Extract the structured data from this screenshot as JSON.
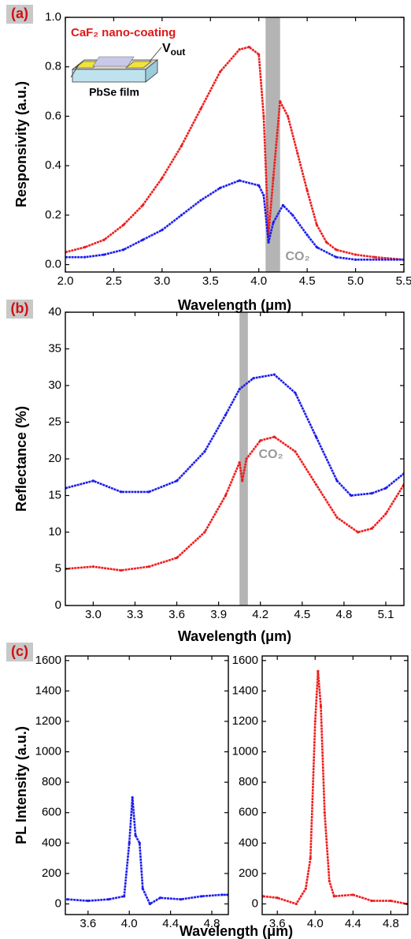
{
  "chart_data": [
    {
      "type": "line",
      "panel_label": "(a)",
      "x_label": "Wavelength (μm)",
      "y_label": "Responsivity (a.u.)",
      "xlim": [
        2.0,
        5.5
      ],
      "ylim": [
        -0.03,
        1.0
      ],
      "xticks": [
        {
          "value": 2.0,
          "label": "2.0"
        },
        2.5,
        {
          "value": 3.0,
          "label": "3.0"
        },
        3.5,
        {
          "value": 4.0,
          "label": "4.0"
        },
        4.5,
        {
          "value": 5.0,
          "label": "5.0"
        },
        5.5
      ],
      "yticks": [
        {
          "value": 0,
          "label": "0.0"
        },
        0.2,
        0.4,
        0.6,
        0.8,
        {
          "value": 1,
          "label": "1.0"
        }
      ],
      "band": [
        4.07,
        4.22
      ],
      "band_color": "#b4b4b4",
      "band_label": "CO₂",
      "inset": {
        "coating": "CaF₂ nano-coating",
        "v": "V",
        "v_sub": "out",
        "film": "PbSe film"
      },
      "series": [
        {
          "color": "#ee1c1c",
          "x": [
            2.0,
            2.2,
            2.4,
            2.6,
            2.8,
            3.0,
            3.2,
            3.4,
            3.6,
            3.8,
            3.9,
            4.0,
            4.05,
            4.1,
            4.15,
            4.22,
            4.3,
            4.4,
            4.5,
            4.6,
            4.7,
            4.8,
            5.0,
            5.2,
            5.5
          ],
          "values": [
            0.05,
            0.07,
            0.1,
            0.16,
            0.24,
            0.35,
            0.48,
            0.63,
            0.78,
            0.87,
            0.88,
            0.85,
            0.6,
            0.12,
            0.35,
            0.66,
            0.6,
            0.45,
            0.3,
            0.16,
            0.09,
            0.06,
            0.04,
            0.03,
            0.02
          ]
        },
        {
          "color": "#1c1cee",
          "x": [
            2.0,
            2.2,
            2.4,
            2.6,
            2.8,
            3.0,
            3.2,
            3.4,
            3.6,
            3.8,
            4.0,
            4.05,
            4.1,
            4.15,
            4.25,
            4.35,
            4.5,
            4.6,
            4.8,
            5.0,
            5.5
          ],
          "values": [
            0.03,
            0.03,
            0.04,
            0.06,
            0.1,
            0.14,
            0.2,
            0.26,
            0.31,
            0.34,
            0.32,
            0.28,
            0.09,
            0.17,
            0.24,
            0.2,
            0.12,
            0.07,
            0.03,
            0.02,
            0.02
          ]
        }
      ]
    },
    {
      "type": "line",
      "panel_label": "(b)",
      "x_label": "Wavelength (μm)",
      "y_label": "Reflectance (%)",
      "xlim": [
        2.8,
        5.23
      ],
      "ylim": [
        0,
        40
      ],
      "xticks": [
        {
          "value": 3.0,
          "label": "3.0"
        },
        3.3,
        3.6,
        3.9,
        4.2,
        4.5,
        4.8,
        5.1
      ],
      "yticks": [
        0,
        5,
        10,
        15,
        20,
        25,
        30,
        35,
        40
      ],
      "band": [
        4.05,
        4.11
      ],
      "band_color": "#b4b4b4",
      "band_label": "CO₂",
      "series": [
        {
          "color": "#1c1cee",
          "x": [
            2.8,
            3.0,
            3.2,
            3.4,
            3.6,
            3.8,
            3.95,
            4.05,
            4.15,
            4.3,
            4.45,
            4.6,
            4.75,
            4.85,
            5.0,
            5.1,
            5.23
          ],
          "values": [
            16,
            17,
            15.5,
            15.5,
            17,
            21,
            26,
            29.5,
            31,
            31.5,
            29,
            23,
            17,
            15,
            15.3,
            16,
            18
          ]
        },
        {
          "color": "#ee1c1c",
          "x": [
            2.8,
            3.0,
            3.2,
            3.4,
            3.6,
            3.8,
            3.95,
            4.05,
            4.07,
            4.1,
            4.2,
            4.3,
            4.45,
            4.6,
            4.75,
            4.9,
            5.0,
            5.1,
            5.23
          ],
          "values": [
            5,
            5.3,
            4.8,
            5.3,
            6.5,
            10,
            15,
            19.5,
            17,
            20,
            22.5,
            23,
            21,
            16.5,
            12,
            10,
            10.5,
            12.5,
            16.5
          ]
        }
      ]
    },
    {
      "type": "line",
      "panel_label": "(c)",
      "x_label": "Wavelength (μm)",
      "y_label": "PL Intensity (a.u.)",
      "xlim": [
        3.38,
        4.96
      ],
      "ylim": [
        -70,
        1630
      ],
      "xticks": [
        3.6,
        {
          "value": 4.0,
          "label": "4.0"
        },
        4.4,
        4.8
      ],
      "yticks": [
        0,
        200,
        400,
        600,
        800,
        1000,
        1200,
        1400,
        1600
      ],
      "series": [
        {
          "color": "#1c1cee",
          "x": [
            3.4,
            3.6,
            3.8,
            3.95,
            4.0,
            4.03,
            4.06,
            4.1,
            4.13,
            4.2,
            4.3,
            4.5,
            4.7,
            4.9,
            4.95
          ],
          "values": [
            30,
            20,
            30,
            50,
            400,
            700,
            450,
            400,
            100,
            0,
            40,
            30,
            50,
            60,
            60
          ]
        }
      ]
    },
    {
      "type": "line",
      "xlim": [
        3.44,
        4.98
      ],
      "ylim": [
        -70,
        1630
      ],
      "xticks": [
        3.6,
        {
          "value": 4.0,
          "label": "4.0"
        },
        4.4,
        4.8
      ],
      "yticks": [
        0,
        200,
        400,
        600,
        800,
        1000,
        1200,
        1400,
        1600
      ],
      "series": [
        {
          "color": "#ee1c1c",
          "x": [
            3.45,
            3.6,
            3.8,
            3.9,
            3.95,
            4.0,
            4.03,
            4.06,
            4.1,
            4.15,
            4.2,
            4.4,
            4.6,
            4.8,
            4.97
          ],
          "values": [
            50,
            40,
            0,
            100,
            300,
            1200,
            1530,
            1300,
            600,
            150,
            50,
            60,
            20,
            20,
            0
          ]
        }
      ]
    }
  ]
}
